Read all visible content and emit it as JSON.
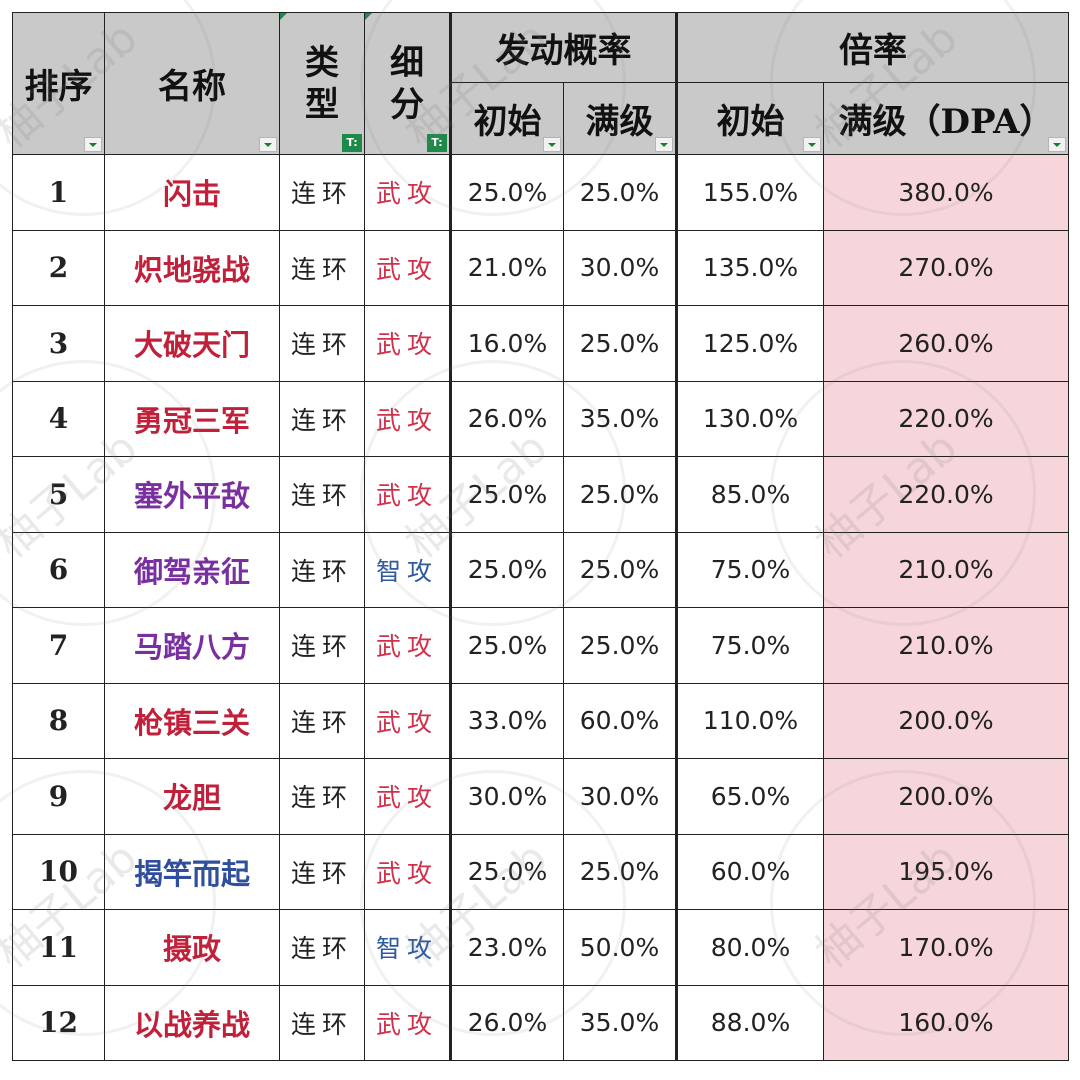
{
  "header": {
    "rank": "排序",
    "name": "名称",
    "type": "类\n型",
    "subtype": "细\n分",
    "trigger": "发动概率",
    "multiplier": "倍率",
    "trigger_init": "初始",
    "trigger_max": "满级",
    "mult_init": "初始",
    "mult_max": "满级（DPA）"
  },
  "watermark": "柚子Lab",
  "colors": {
    "red": "#c0203a",
    "purple": "#7a2fa0",
    "blue": "#2f4f9e",
    "wu": "#d0304a",
    "zhi": "#2f5aa0",
    "highlight": "#f6d6da"
  },
  "rows": [
    {
      "rank": "1",
      "name": "闪击",
      "name_color": "red",
      "type": "连环",
      "sub": "武攻",
      "sub_color": "wu",
      "t_init": "25.0%",
      "t_max": "25.0%",
      "m_init": "155.0%",
      "m_max": "380.0%"
    },
    {
      "rank": "2",
      "name": "炽地骁战",
      "name_color": "red",
      "type": "连环",
      "sub": "武攻",
      "sub_color": "wu",
      "t_init": "21.0%",
      "t_max": "30.0%",
      "m_init": "135.0%",
      "m_max": "270.0%"
    },
    {
      "rank": "3",
      "name": "大破天门",
      "name_color": "red",
      "type": "连环",
      "sub": "武攻",
      "sub_color": "wu",
      "t_init": "16.0%",
      "t_max": "25.0%",
      "m_init": "125.0%",
      "m_max": "260.0%"
    },
    {
      "rank": "4",
      "name": "勇冠三军",
      "name_color": "red",
      "type": "连环",
      "sub": "武攻",
      "sub_color": "wu",
      "t_init": "26.0%",
      "t_max": "35.0%",
      "m_init": "130.0%",
      "m_max": "220.0%"
    },
    {
      "rank": "5",
      "name": "塞外平敌",
      "name_color": "purple",
      "type": "连环",
      "sub": "武攻",
      "sub_color": "wu",
      "t_init": "25.0%",
      "t_max": "25.0%",
      "m_init": "85.0%",
      "m_max": "220.0%"
    },
    {
      "rank": "6",
      "name": "御驾亲征",
      "name_color": "purple",
      "type": "连环",
      "sub": "智攻",
      "sub_color": "zhi",
      "t_init": "25.0%",
      "t_max": "25.0%",
      "m_init": "75.0%",
      "m_max": "210.0%"
    },
    {
      "rank": "7",
      "name": "马踏八方",
      "name_color": "purple",
      "type": "连环",
      "sub": "武攻",
      "sub_color": "wu",
      "t_init": "25.0%",
      "t_max": "25.0%",
      "m_init": "75.0%",
      "m_max": "210.0%"
    },
    {
      "rank": "8",
      "name": "枪镇三关",
      "name_color": "red",
      "type": "连环",
      "sub": "武攻",
      "sub_color": "wu",
      "t_init": "33.0%",
      "t_max": "60.0%",
      "m_init": "110.0%",
      "m_max": "200.0%"
    },
    {
      "rank": "9",
      "name": "龙胆",
      "name_color": "red",
      "type": "连环",
      "sub": "武攻",
      "sub_color": "wu",
      "t_init": "30.0%",
      "t_max": "30.0%",
      "m_init": "65.0%",
      "m_max": "200.0%"
    },
    {
      "rank": "10",
      "name": "揭竿而起",
      "name_color": "blue",
      "type": "连环",
      "sub": "武攻",
      "sub_color": "wu",
      "t_init": "25.0%",
      "t_max": "25.0%",
      "m_init": "60.0%",
      "m_max": "195.0%"
    },
    {
      "rank": "11",
      "name": "摄政",
      "name_color": "red",
      "type": "连环",
      "sub": "智攻",
      "sub_color": "zhi",
      "t_init": "23.0%",
      "t_max": "50.0%",
      "m_init": "80.0%",
      "m_max": "170.0%"
    },
    {
      "rank": "12",
      "name": "以战养战",
      "name_color": "red",
      "type": "连环",
      "sub": "武攻",
      "sub_color": "wu",
      "t_init": "26.0%",
      "t_max": "35.0%",
      "m_init": "88.0%",
      "m_max": "160.0%"
    }
  ]
}
